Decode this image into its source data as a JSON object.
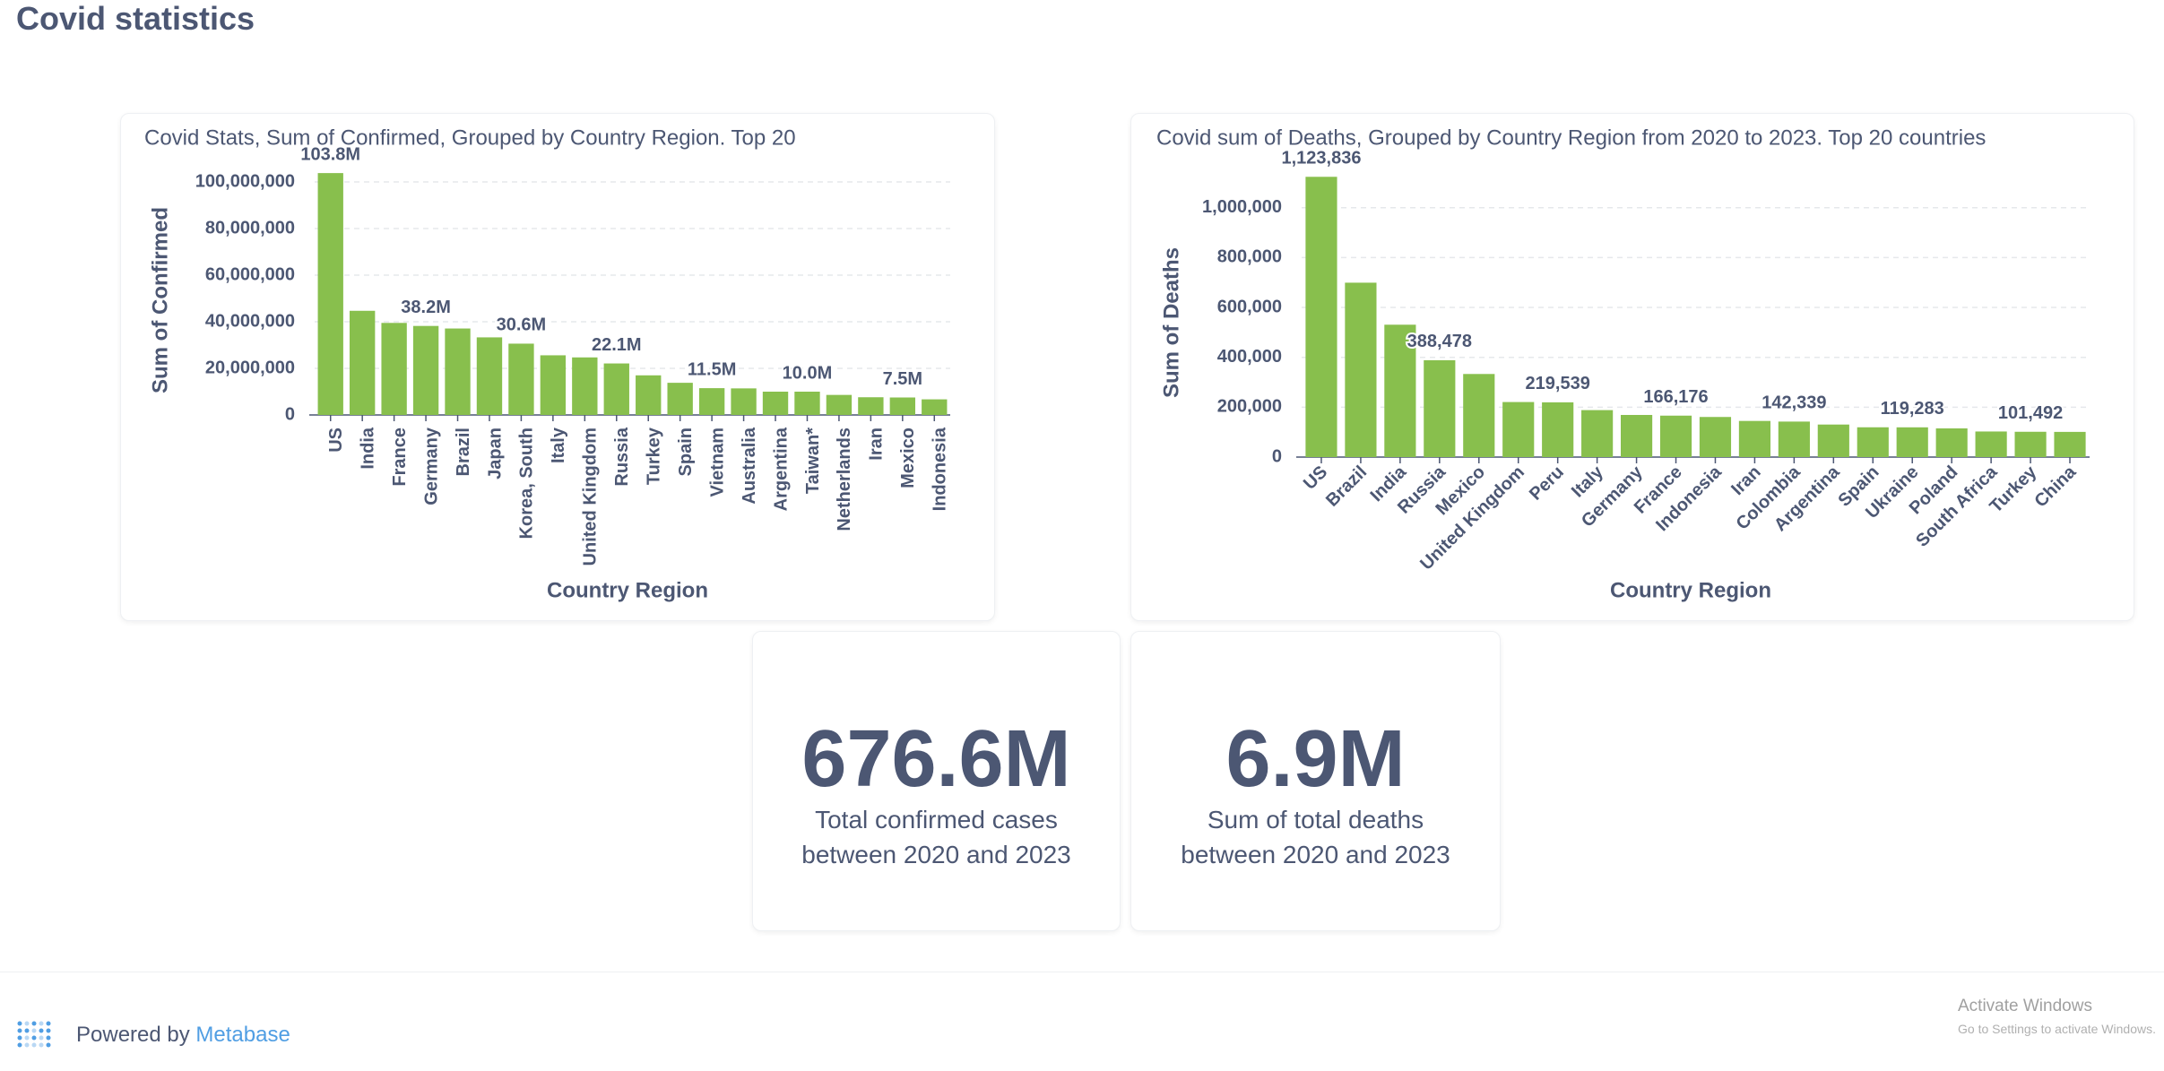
{
  "header": {
    "title": "Covid statistics"
  },
  "chart_data": [
    {
      "type": "bar",
      "title": "Covid Stats, Sum of Confirmed, Grouped by Country Region. Top 20",
      "x_label": "Country Region",
      "y_label": "Sum of Confirmed",
      "color": "#88bf4d",
      "grid": true,
      "categories": [
        "US",
        "India",
        "France",
        "Germany",
        "Brazil",
        "Japan",
        "Korea, South",
        "Italy",
        "United Kingdom",
        "Russia",
        "Turkey",
        "Spain",
        "Vietnam",
        "Australia",
        "Argentina",
        "Taiwan*",
        "Netherlands",
        "Iran",
        "Mexico",
        "Indonesia"
      ],
      "values": [
        103800000,
        44700000,
        39500000,
        38200000,
        37100000,
        33300000,
        30600000,
        25600000,
        24700000,
        22100000,
        17000000,
        13800000,
        11500000,
        11400000,
        10000000,
        10000000,
        8600000,
        7600000,
        7500000,
        6700000
      ],
      "value_labels": [
        "103.8M",
        null,
        null,
        "38.2M",
        null,
        null,
        "30.6M",
        null,
        null,
        "22.1M",
        null,
        null,
        "11.5M",
        null,
        null,
        "10.0M",
        null,
        null,
        "7.5M",
        null
      ],
      "ylim": [
        0,
        105000000
      ],
      "yticks": [
        0,
        {
          "value": 20000000,
          "label": "20,000,000"
        },
        {
          "value": 40000000,
          "label": "40,000,000"
        },
        {
          "value": 60000000,
          "label": "60,000,000"
        },
        {
          "value": 80000000,
          "label": "80,000,000"
        },
        {
          "value": 100000000,
          "label": "100,000,000"
        }
      ]
    },
    {
      "type": "bar",
      "title": "Covid sum of Deaths, Grouped by Country Region from 2020 to 2023. Top 20 countries",
      "x_label": "Country Region",
      "y_label": "Sum of Deaths",
      "color": "#88bf4d",
      "grid": true,
      "categories": [
        "US",
        "Brazil",
        "India",
        "Russia",
        "Mexico",
        "United Kingdom",
        "Peru",
        "Italy",
        "Germany",
        "France",
        "Indonesia",
        "Iran",
        "Colombia",
        "Argentina",
        "Spain",
        "Ukraine",
        "Poland",
        "South Africa",
        "Turkey",
        "China"
      ],
      "values": [
        1123836,
        699276,
        530779,
        388478,
        333188,
        220721,
        219539,
        188322,
        168935,
        166176,
        160817,
        144933,
        142339,
        130472,
        119479,
        119283,
        115000,
        102595,
        101492,
        101000
      ],
      "value_labels": [
        "1,123,836",
        null,
        null,
        "388,478",
        null,
        null,
        "219,539",
        null,
        null,
        "166,176",
        null,
        null,
        "142,339",
        null,
        null,
        "119,283",
        null,
        null,
        "101,492",
        null
      ],
      "ylim": [
        0,
        1150000
      ],
      "yticks": [
        0,
        {
          "value": 200000,
          "label": "200,000"
        },
        {
          "value": 400000,
          "label": "400,000"
        },
        {
          "value": 600000,
          "label": "600,000"
        },
        {
          "value": 800000,
          "label": "800,000"
        },
        {
          "value": 1000000,
          "label": "1,000,000"
        }
      ]
    }
  ],
  "cards": [
    {
      "value": "676.6M",
      "label": "Total confirmed cases between 2020 and 2023"
    },
    {
      "value": "6.9M",
      "label": "Sum of total deaths between 2020 and 2023"
    }
  ],
  "footer": {
    "powered_by": "Powered by",
    "brand": "Metabase"
  },
  "watermark": {
    "title": "Activate Windows",
    "subtitle": "Go to Settings to activate Windows."
  }
}
